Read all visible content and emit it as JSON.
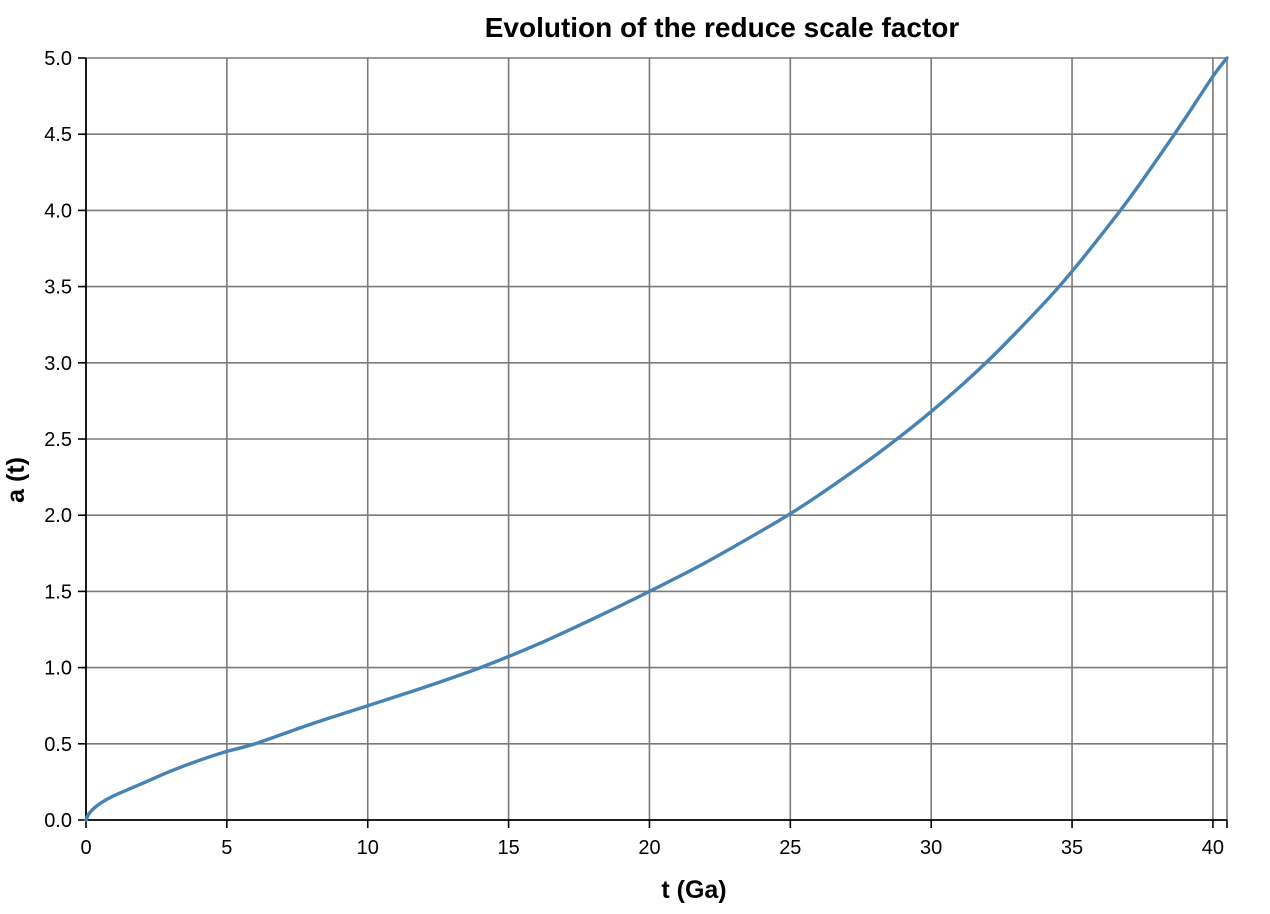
{
  "chart_data": {
    "type": "line",
    "title": "Evolution of the reduce scale factor",
    "xlabel": "t (Ga)",
    "ylabel": "a (t)",
    "xlim": [
      0,
      40.5
    ],
    "ylim": [
      0,
      5.0
    ],
    "x_ticks": [
      0,
      5,
      10,
      15,
      20,
      25,
      30,
      35,
      40
    ],
    "x_tick_labels": [
      "0",
      "5",
      "10",
      "15",
      "20",
      "25",
      "30",
      "35",
      "40"
    ],
    "y_ticks": [
      0.0,
      0.5,
      1.0,
      1.5,
      2.0,
      2.5,
      3.0,
      3.5,
      4.0,
      4.5,
      5.0
    ],
    "y_tick_labels": [
      "0.0",
      "0.5",
      "1.0",
      "1.5",
      "2.0",
      "2.5",
      "3.0",
      "3.5",
      "4.0",
      "4.5",
      "5.0"
    ],
    "grid": true,
    "series": [
      {
        "color": "#4682b4",
        "x": [
          0,
          0.1,
          0.3,
          0.6,
          1,
          2,
          3,
          4,
          5,
          6,
          8,
          10,
          12,
          14,
          16,
          18,
          20,
          22,
          24,
          25,
          26,
          28,
          30,
          32,
          34,
          35,
          36,
          37,
          38,
          39,
          40,
          40.5
        ],
        "y": [
          0,
          0.04,
          0.08,
          0.12,
          0.16,
          0.24,
          0.32,
          0.39,
          0.45,
          0.5,
          0.63,
          0.75,
          0.87,
          1.0,
          1.15,
          1.32,
          1.5,
          1.69,
          1.9,
          2.01,
          2.13,
          2.39,
          2.68,
          3.01,
          3.39,
          3.6,
          3.83,
          4.07,
          4.33,
          4.6,
          4.88,
          5.0
        ]
      }
    ]
  }
}
